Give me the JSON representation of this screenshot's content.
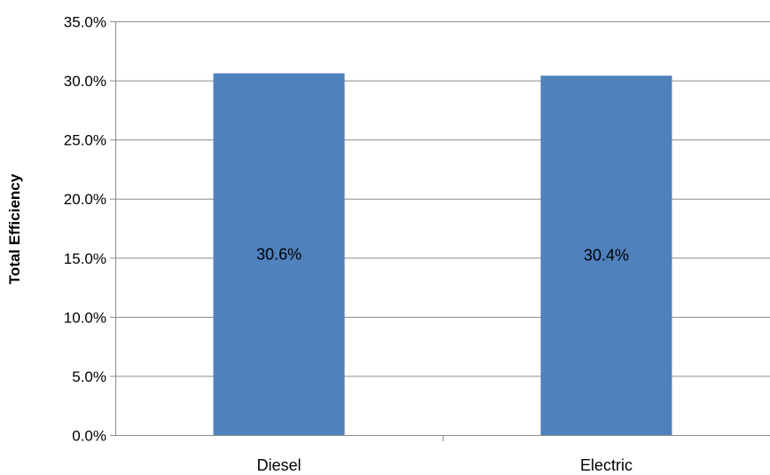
{
  "chart_data": {
    "type": "bar",
    "categories": [
      "Diesel",
      "Electric"
    ],
    "values": [
      30.6,
      30.4
    ],
    "data_labels": [
      "30.6%",
      "30.4%"
    ],
    "ylabel": "Total Efficiency",
    "ylim": [
      0,
      35
    ],
    "yticks": [
      0,
      5,
      10,
      15,
      20,
      25,
      30,
      35
    ],
    "ytick_labels": [
      "0.0%",
      "5.0%",
      "10.0%",
      "15.0%",
      "20.0%",
      "25.0%",
      "30.0%",
      "35.0%"
    ],
    "grid": true,
    "legend": "none",
    "bar_color": "#4f81bd"
  }
}
